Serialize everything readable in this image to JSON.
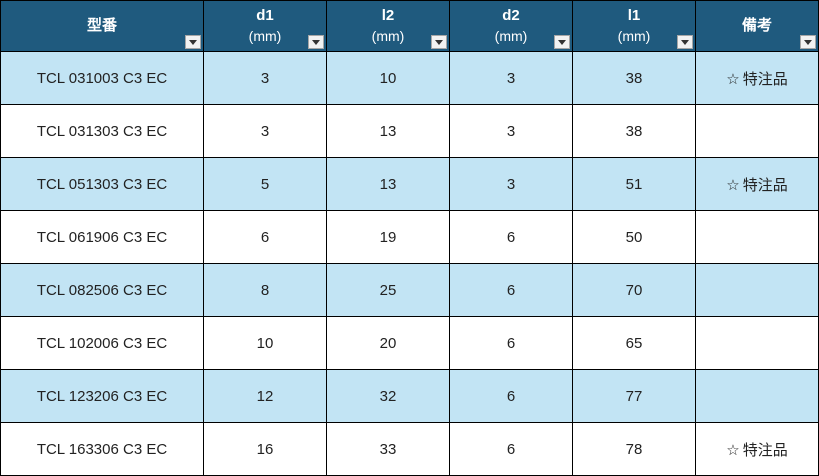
{
  "table": {
    "headers": [
      {
        "label": "型番",
        "unit": ""
      },
      {
        "label": "d1",
        "unit": "(mm)"
      },
      {
        "label": "l2",
        "unit": "(mm)"
      },
      {
        "label": "d2",
        "unit": "(mm)"
      },
      {
        "label": "l1",
        "unit": "(mm)"
      },
      {
        "label": "備考",
        "unit": ""
      }
    ],
    "filter_icon": "dropdown-arrow",
    "colors": {
      "header_bg": "#1f5a7e",
      "band_bg": "#c2e4f4"
    },
    "rows": [
      {
        "model": "TCL 031003 C3 EC",
        "d1": "3",
        "l2": "10",
        "d2": "3",
        "l1": "38",
        "note_star": "☆",
        "note": "特注品"
      },
      {
        "model": "TCL 031303 C3 EC",
        "d1": "3",
        "l2": "13",
        "d2": "3",
        "l1": "38",
        "note_star": "",
        "note": ""
      },
      {
        "model": "TCL 051303 C3 EC",
        "d1": "5",
        "l2": "13",
        "d2": "3",
        "l1": "51",
        "note_star": "☆",
        "note": "特注品"
      },
      {
        "model": "TCL 061906 C3 EC",
        "d1": "6",
        "l2": "19",
        "d2": "6",
        "l1": "50",
        "note_star": "",
        "note": ""
      },
      {
        "model": "TCL 082506 C3 EC",
        "d1": "8",
        "l2": "25",
        "d2": "6",
        "l1": "70",
        "note_star": "",
        "note": ""
      },
      {
        "model": "TCL 102006 C3 EC",
        "d1": "10",
        "l2": "20",
        "d2": "6",
        "l1": "65",
        "note_star": "",
        "note": ""
      },
      {
        "model": "TCL 123206 C3 EC",
        "d1": "12",
        "l2": "32",
        "d2": "6",
        "l1": "77",
        "note_star": "",
        "note": ""
      },
      {
        "model": "TCL 163306 C3 EC",
        "d1": "16",
        "l2": "33",
        "d2": "6",
        "l1": "78",
        "note_star": "☆",
        "note": "特注品"
      }
    ]
  }
}
